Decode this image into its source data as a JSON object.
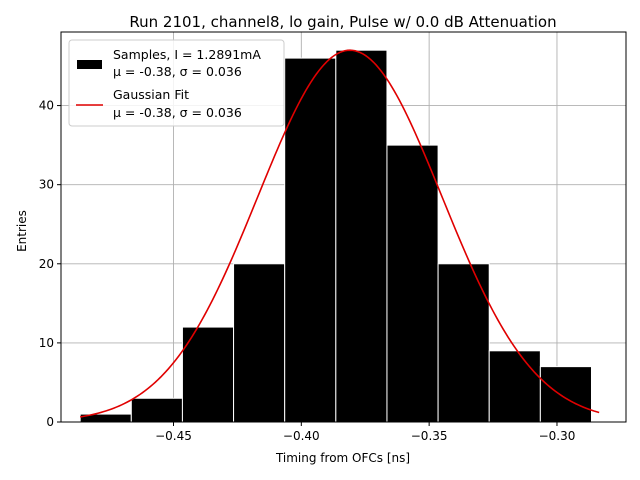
{
  "chart_data": {
    "type": "bar",
    "title": "Run 2101, channel8, lo gain, Pulse w/ 0.0 dB Attenuation",
    "xlabel": "Timing from OFCs [ns]",
    "ylabel": "Entries",
    "xlim": [
      -0.494,
      -0.273
    ],
    "ylim": [
      0,
      49.3
    ],
    "grid": true,
    "legend_position": "top-left",
    "bins": [
      {
        "x0": -0.4865,
        "x1": -0.4665,
        "count": 1
      },
      {
        "x0": -0.4665,
        "x1": -0.4465,
        "count": 3
      },
      {
        "x0": -0.4465,
        "x1": -0.4265,
        "count": 12
      },
      {
        "x0": -0.4265,
        "x1": -0.4065,
        "count": 20
      },
      {
        "x0": -0.4065,
        "x1": -0.3865,
        "count": 46
      },
      {
        "x0": -0.3865,
        "x1": -0.3665,
        "count": 47
      },
      {
        "x0": -0.3665,
        "x1": -0.3465,
        "count": 35
      },
      {
        "x0": -0.3465,
        "x1": -0.3265,
        "count": 20
      },
      {
        "x0": -0.3265,
        "x1": -0.3065,
        "count": 9
      },
      {
        "x0": -0.3065,
        "x1": -0.2865,
        "count": 7
      }
    ],
    "fit": {
      "mu": -0.381,
      "sigma": 0.036,
      "amplitude": 47,
      "x_start": -0.4865,
      "x_end": -0.2835
    },
    "x_ticks": [
      -0.45,
      -0.4,
      -0.35,
      -0.3
    ],
    "x_tick_labels": [
      "−0.45",
      "−0.40",
      "−0.35",
      "−0.30"
    ],
    "y_ticks": [
      0,
      10,
      20,
      30,
      40
    ],
    "y_tick_labels": [
      "0",
      "10",
      "20",
      "30",
      "40"
    ],
    "legend": [
      {
        "label": "Samples, I = 1.2891mA",
        "sublabel": "μ = -0.38, σ = 0.036",
        "kind": "bar"
      },
      {
        "label": "Gaussian Fit",
        "sublabel": "μ = -0.38, σ = 0.036",
        "kind": "line"
      }
    ],
    "colors": {
      "bars": "#000000",
      "bar_edge": "#ffffff",
      "fit": "#e00000",
      "grid": "#b0b0b0"
    }
  }
}
